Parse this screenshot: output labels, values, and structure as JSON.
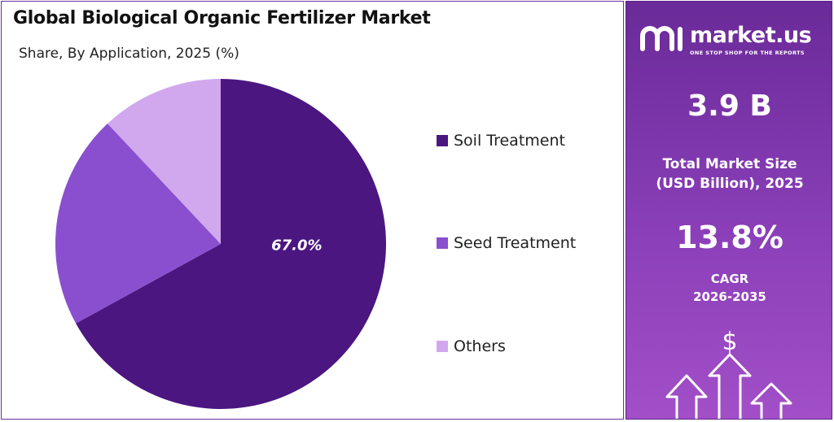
{
  "chart_data": {
    "type": "pie",
    "title": "Global Biological Organic Fertilizer Market",
    "subtitle": "Share, By Application, 2025 (%)",
    "slices": [
      {
        "name": "Soil Treatment",
        "value": 67.0,
        "color": "#4b1680",
        "label": "67.0%"
      },
      {
        "name": "Seed Treatment",
        "value": 21.0,
        "color": "#8a4fcf",
        "label": ""
      },
      {
        "name": "Others",
        "value": 12.0,
        "color": "#d1a8ee",
        "label": ""
      }
    ],
    "legend_position": "right"
  },
  "brand": {
    "name": "market.us",
    "tagline": "ONE STOP SHOP FOR THE REPORTS"
  },
  "stats": {
    "market_size_value": "3.9 B",
    "market_size_label_line1": "Total Market Size",
    "market_size_label_line2": "(USD Billion), 2025",
    "cagr_value": "13.8%",
    "cagr_label_line1": "CAGR",
    "cagr_label_line2": "2026-2035"
  },
  "decor": {
    "dollar_symbol": "$"
  }
}
